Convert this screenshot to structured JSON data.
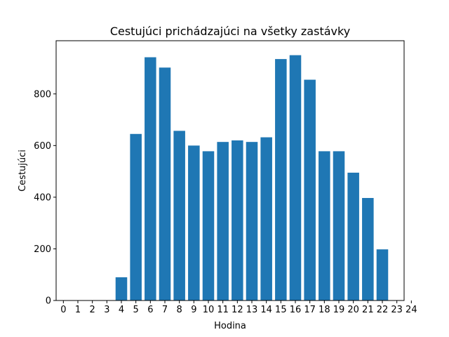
{
  "chart_data": {
    "type": "bar",
    "title": "Cestujúci prichádzajúci na všetky zastávky",
    "xlabel": "Hodina",
    "ylabel": "Cestujúci",
    "x": [
      0,
      1,
      2,
      3,
      4,
      5,
      6,
      7,
      8,
      9,
      10,
      11,
      12,
      13,
      14,
      15,
      16,
      17,
      18,
      19,
      20,
      21,
      22,
      23
    ],
    "values": [
      0,
      0,
      0,
      0,
      90,
      645,
      942,
      902,
      657,
      600,
      578,
      614,
      620,
      614,
      632,
      935,
      950,
      855,
      578,
      578,
      495,
      397,
      198,
      0
    ],
    "xlim": [
      0,
      24
    ],
    "ylim": [
      0,
      1000
    ],
    "x_ticks": [
      0,
      1,
      2,
      3,
      4,
      5,
      6,
      7,
      8,
      9,
      10,
      11,
      12,
      13,
      14,
      15,
      16,
      17,
      18,
      19,
      20,
      21,
      22,
      23,
      24
    ],
    "y_ticks": [
      0,
      200,
      400,
      600,
      800
    ],
    "bar_color": "#1f77b4",
    "grid": false,
    "legend": "none"
  }
}
